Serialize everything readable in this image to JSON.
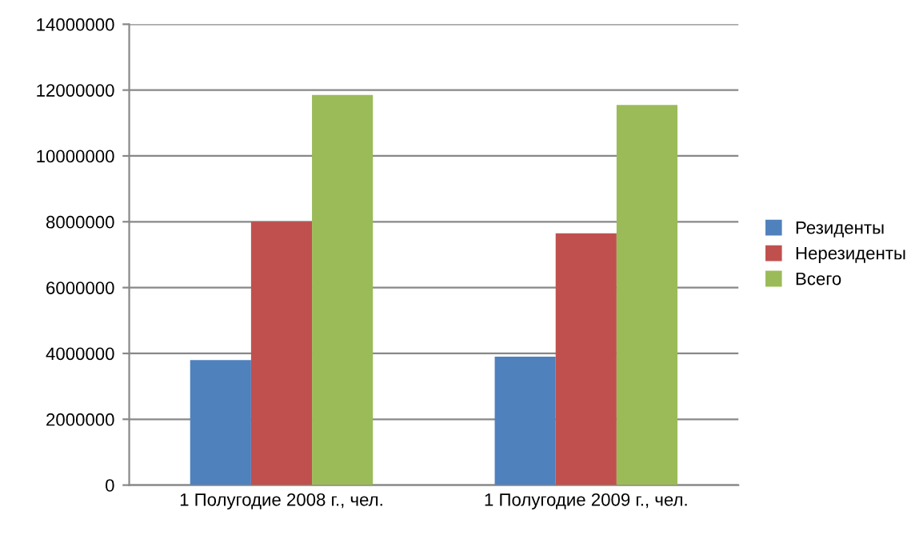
{
  "chart_data": {
    "type": "bar",
    "categories": [
      "1 Полугодие 2008 г., чел.",
      "1 Полугодие 2009 г., чел."
    ],
    "series": [
      {
        "name": "Резиденты",
        "color": "#4f81bd",
        "values": [
          3800000,
          3900000
        ]
      },
      {
        "name": "Нерезиденты",
        "color": "#c0504d",
        "values": [
          8000000,
          7650000
        ]
      },
      {
        "name": "Всего",
        "color": "#9bbb59",
        "values": [
          11850000,
          11550000
        ]
      }
    ],
    "ylim": [
      0,
      14000000
    ],
    "yticks": [
      0,
      2000000,
      4000000,
      6000000,
      8000000,
      10000000,
      12000000,
      14000000
    ],
    "grid": "y",
    "legend": "right"
  }
}
